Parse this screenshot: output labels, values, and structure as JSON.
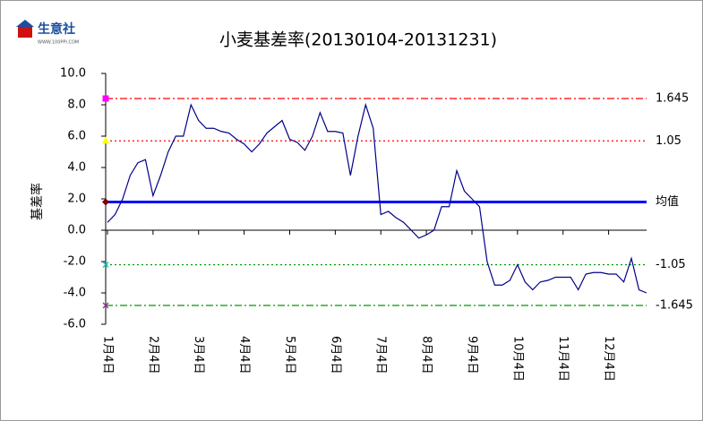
{
  "logo": {
    "name": "生意社",
    "url": "WWW.100PPI.COM"
  },
  "chart_data": {
    "type": "line",
    "title": "小麦基差率(20130104-20131231)",
    "y_label": "基差率",
    "categories": [
      "1月4日",
      null,
      null,
      null,
      null,
      null,
      "2月4日",
      null,
      null,
      null,
      null,
      null,
      "3月4日",
      null,
      null,
      null,
      null,
      null,
      "4月4日",
      null,
      null,
      null,
      null,
      null,
      "5月4日",
      null,
      null,
      null,
      null,
      null,
      "6月4日",
      null,
      null,
      null,
      null,
      null,
      "7月4日",
      null,
      null,
      null,
      null,
      null,
      "8月4日",
      null,
      null,
      null,
      null,
      null,
      "9月4日",
      null,
      null,
      null,
      null,
      null,
      "10月4日",
      null,
      null,
      null,
      null,
      null,
      "11月4日",
      null,
      null,
      null,
      null,
      null,
      "12月4日",
      null,
      null,
      null,
      null,
      null
    ],
    "series": [
      {
        "name": "基差率",
        "color": "#00008b",
        "values": [
          0.5,
          1.0,
          2.0,
          3.5,
          4.3,
          4.5,
          2.2,
          3.5,
          5.0,
          6.0,
          6.0,
          8.0,
          7.0,
          6.5,
          6.5,
          6.3,
          6.2,
          5.8,
          5.5,
          5.0,
          5.5,
          6.2,
          6.6,
          7.0,
          5.8,
          5.6,
          5.1,
          6.0,
          7.5,
          6.3,
          6.3,
          6.2,
          3.5,
          6.0,
          8.0,
          6.5,
          1.0,
          1.2,
          0.8,
          0.5,
          0.0,
          -0.5,
          -0.3,
          0.0,
          1.5,
          1.5,
          3.8,
          2.5,
          2.0,
          1.5,
          -2.0,
          -3.5,
          -3.5,
          -3.2,
          -2.2,
          -3.3,
          -3.8,
          -3.3,
          -3.2,
          -3.0,
          -3.0,
          -3.0,
          -3.8,
          -2.8,
          -2.7,
          -2.7,
          -2.8,
          -2.8,
          -3.3,
          -1.8,
          -3.8,
          -4.0
        ]
      }
    ],
    "ylim": [
      -6,
      10
    ],
    "yticks": [
      {
        "value": 10,
        "label": "10.0"
      },
      {
        "value": 8,
        "label": "8.0"
      },
      {
        "value": 6,
        "label": "6.0"
      },
      {
        "value": 4,
        "label": "4.0"
      },
      {
        "value": 2,
        "label": "2.0"
      },
      {
        "value": 0,
        "label": "0.0"
      },
      {
        "value": -2,
        "label": "-2.0"
      },
      {
        "value": -4,
        "label": "-4.0"
      },
      {
        "value": -6,
        "label": "-6.0"
      }
    ],
    "reference_lines": [
      {
        "value": 8.4,
        "label": "1.645",
        "color": "#ff0000",
        "style": "dashdot",
        "marker": "square",
        "marker_color": "#ff00ff"
      },
      {
        "value": 5.7,
        "label": "1.05",
        "color": "#ff0000",
        "style": "dotted",
        "marker": "triangle",
        "marker_color": "#ffff00"
      },
      {
        "value": 1.8,
        "label": "均值",
        "color": "#0000ff",
        "style": "solid",
        "marker": "diamond",
        "marker_color": "#800000"
      },
      {
        "value": -2.2,
        "label": "-1.05",
        "color": "#009900",
        "style": "dotted",
        "marker": "x",
        "marker_color": "#00cccc"
      },
      {
        "value": -4.8,
        "label": "-1.645",
        "color": "#009900",
        "style": "dashdot",
        "marker": "x",
        "marker_color": "#993399"
      }
    ]
  }
}
